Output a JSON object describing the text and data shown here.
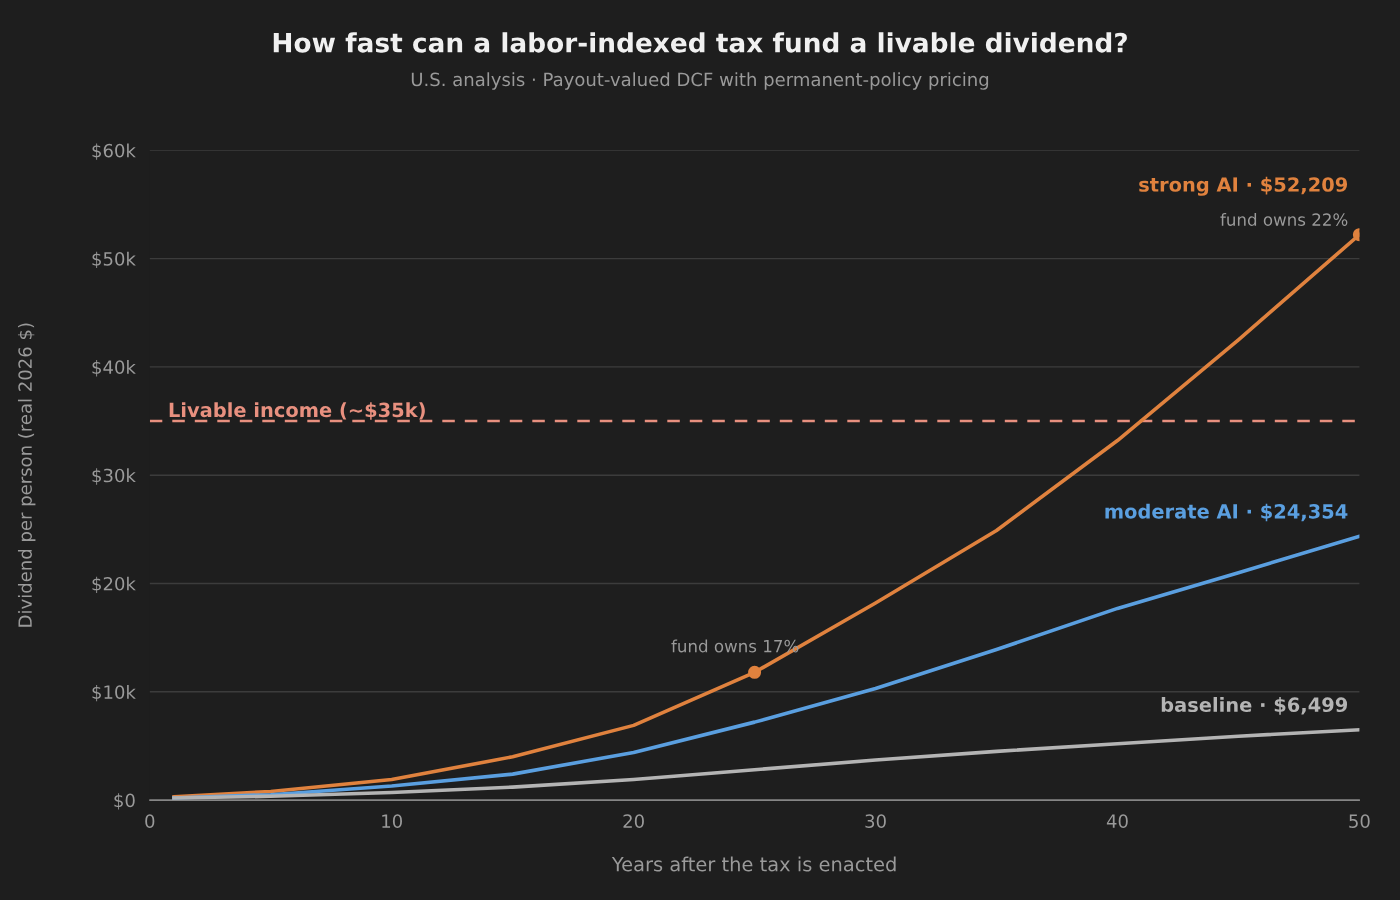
{
  "chart_data": {
    "type": "line",
    "title": "How fast can a labor-indexed tax fund a livable dividend?",
    "subtitle": "U.S. analysis · Payout-valued DCF with permanent-policy pricing",
    "xlabel": "Years after the tax is enacted",
    "ylabel": "Dividend per person (real 2026 $)",
    "x": [
      1,
      5,
      10,
      15,
      20,
      25,
      30,
      35,
      40,
      45,
      50
    ],
    "series": [
      {
        "name": "strong AI · $52,209",
        "color": "#e0823e",
        "values": [
          300,
          800,
          1900,
          4000,
          6900,
          11800,
          18200,
          24900,
          33200,
          42500,
          52209
        ]
      },
      {
        "name": "moderate AI · $24,354",
        "color": "#5a9fe0",
        "values": [
          200,
          500,
          1300,
          2400,
          4400,
          7200,
          10300,
          13900,
          17700,
          21000,
          24354
        ]
      },
      {
        "name": "baseline · $6,499",
        "color": "#b4b4b4",
        "values": [
          200,
          350,
          700,
          1200,
          1900,
          2800,
          3700,
          4500,
          5200,
          5900,
          6499
        ]
      },
      {
        "type": "scatter",
        "color": "#e0823e",
        "marker": "circle",
        "x": [
          25,
          50
        ],
        "values": [
          11800,
          52209
        ]
      }
    ],
    "xlim": [
      0,
      50
    ],
    "xticks": [
      0,
      10,
      20,
      30,
      40,
      50
    ],
    "ylim": [
      0,
      60000
    ],
    "yticks": [
      {
        "value": 0,
        "label": "$0"
      },
      {
        "value": 10000,
        "label": "$10k"
      },
      {
        "value": 20000,
        "label": "$20k"
      },
      {
        "value": 30000,
        "label": "$30k"
      },
      {
        "value": 40000,
        "label": "$40k"
      },
      {
        "value": 50000,
        "label": "$50k"
      },
      {
        "value": 60000,
        "label": "$60k"
      }
    ],
    "ref_lines": [
      {
        "axis": "y",
        "value": 35000,
        "label": "Livable income (~$35k)",
        "color": "#e8907f",
        "line_style": "dashed"
      }
    ],
    "annotations": [
      {
        "text": "fund owns 22%",
        "x": 50,
        "y": 52209
      },
      {
        "text": "fund owns 17%",
        "x": 25,
        "y": 11800
      }
    ],
    "grid": "y",
    "marker": "none",
    "line_style": "solid",
    "legend": false
  }
}
